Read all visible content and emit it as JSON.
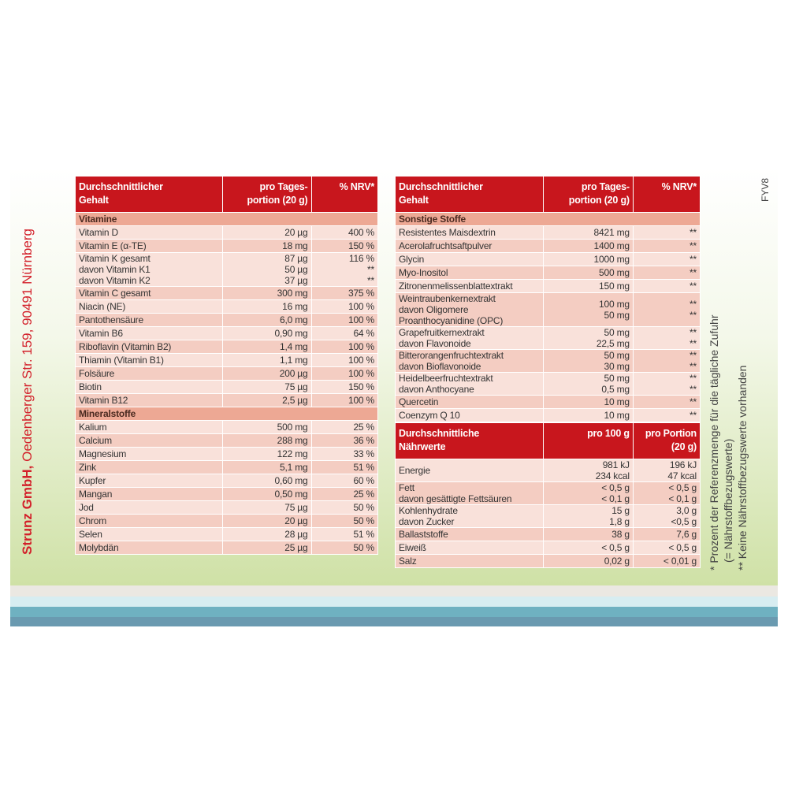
{
  "company": "Strunz GmbH,",
  "address": "Oedenberger Str. 159, 90491 Nürnberg",
  "code": "FYV8",
  "footnotes": [
    "* Prozent der Referenzmenge für die tägliche Zufuhr",
    "(= Nährstoffbezugswerte)",
    "** Keine Nährstoffbezugswerte vorhanden"
  ],
  "left_table": {
    "header": [
      [
        "Durchschnittlicher",
        "Gehalt"
      ],
      [
        "pro Tages-",
        "portion (20 g)"
      ],
      [
        "% NRV*"
      ]
    ],
    "sections": [
      {
        "title": "Vitamine",
        "rows": [
          [
            "Vitamin D",
            "20 µg",
            "400 %"
          ],
          [
            "Vitamin E (α-TE)",
            "18 mg",
            "150 %"
          ],
          [
            [
              "Vitamin K gesamt",
              "davon Vitamin K1",
              "davon Vitamin K2"
            ],
            [
              "87 µg",
              "50 µg",
              "37 µg"
            ],
            [
              "116 %",
              "**",
              "**"
            ]
          ],
          [
            "Vitamin C gesamt",
            "300 mg",
            "375 %"
          ],
          [
            "Niacin (NE)",
            "16 mg",
            "100 %"
          ],
          [
            "Pantothensäure",
            "6,0 mg",
            "100 %"
          ],
          [
            "Vitamin B6",
            "0,90 mg",
            "64 %"
          ],
          [
            "Riboflavin (Vitamin B2)",
            "1,4 mg",
            "100 %"
          ],
          [
            "Thiamin (Vitamin B1)",
            "1,1 mg",
            "100 %"
          ],
          [
            "Folsäure",
            "200 µg",
            "100 %"
          ],
          [
            "Biotin",
            "75 µg",
            "150 %"
          ],
          [
            "Vitamin B12",
            "2,5 µg",
            "100 %"
          ]
        ]
      },
      {
        "title": "Mineralstoffe",
        "rows": [
          [
            "Kalium",
            "500 mg",
            "25 %"
          ],
          [
            "Calcium",
            "288 mg",
            "36 %"
          ],
          [
            "Magnesium",
            "122 mg",
            "33 %"
          ],
          [
            "Zink",
            "5,1 mg",
            "51 %"
          ],
          [
            "Kupfer",
            "0,60 mg",
            "60 %"
          ],
          [
            "Mangan",
            "0,50 mg",
            "25 %"
          ],
          [
            "Jod",
            "75 µg",
            "50 %"
          ],
          [
            "Chrom",
            "20 µg",
            "50 %"
          ],
          [
            "Selen",
            "28 µg",
            "51 %"
          ],
          [
            "Molybdän",
            "25 µg",
            "50 %"
          ]
        ]
      }
    ]
  },
  "right_table": {
    "header": [
      [
        "Durchschnittlicher",
        "Gehalt"
      ],
      [
        "pro Tages-",
        "portion (20 g)"
      ],
      [
        "% NRV*"
      ]
    ],
    "sections": [
      {
        "title": "Sonstige Stoffe",
        "rows": [
          [
            "Resistentes Maisdextrin",
            "8421 mg",
            "**"
          ],
          [
            "Acerolafruchtsaftpulver",
            "1400 mg",
            "**"
          ],
          [
            "Glycin",
            "1000 mg",
            "**"
          ],
          [
            "Myo-Inositol",
            "500 mg",
            "**"
          ],
          [
            "Zitronenmelissenblattextrakt",
            "150 mg",
            "**"
          ],
          [
            [
              "Weintraubenkernextrakt",
              "davon Oligomere",
              "Proanthocyanidine (OPC)"
            ],
            [
              "100 mg",
              "50 mg"
            ],
            [
              "**",
              "**"
            ]
          ],
          [
            [
              "Grapefruitkernextrakt",
              "davon Flavonoide"
            ],
            [
              "50 mg",
              "22,5 mg"
            ],
            [
              "**",
              "**"
            ]
          ],
          [
            [
              "Bitterorangenfruchtextrakt",
              "davon Bioflavonoide"
            ],
            [
              "50 mg",
              "30 mg"
            ],
            [
              "**",
              "**"
            ]
          ],
          [
            [
              "Heidelbeerfruchtextrakt",
              "davon Anthocyane"
            ],
            [
              "50 mg",
              "0,5 mg"
            ],
            [
              "**",
              "**"
            ]
          ],
          [
            "Quercetin",
            "10 mg",
            "**"
          ],
          [
            "Coenzym Q 10",
            "10 mg",
            "**"
          ]
        ]
      }
    ]
  },
  "nutrition_table": {
    "header": [
      [
        "Durchschnittliche",
        "Nährwerte"
      ],
      [
        "pro 100 g"
      ],
      [
        "pro Portion",
        "(20 g)"
      ]
    ],
    "rows": [
      [
        "Energie",
        [
          "981 kJ",
          "234 kcal"
        ],
        [
          "196 kJ",
          "47 kcal"
        ]
      ],
      [
        [
          "Fett",
          "davon gesättigte Fettsäuren"
        ],
        [
          "< 0,5 g",
          "< 0,1 g"
        ],
        [
          "< 0,5 g",
          "< 0,1 g"
        ]
      ],
      [
        [
          "Kohlenhydrate",
          "davon Zucker"
        ],
        [
          "15 g",
          "1,8 g"
        ],
        [
          "3,0 g",
          "<0,5 g"
        ]
      ],
      [
        "Ballaststoffe",
        "38 g",
        "7,6 g"
      ],
      [
        "Eiweiß",
        "< 0,5 g",
        "< 0,5 g"
      ],
      [
        "Salz",
        "0,02 g",
        "< 0,01 g"
      ]
    ]
  }
}
